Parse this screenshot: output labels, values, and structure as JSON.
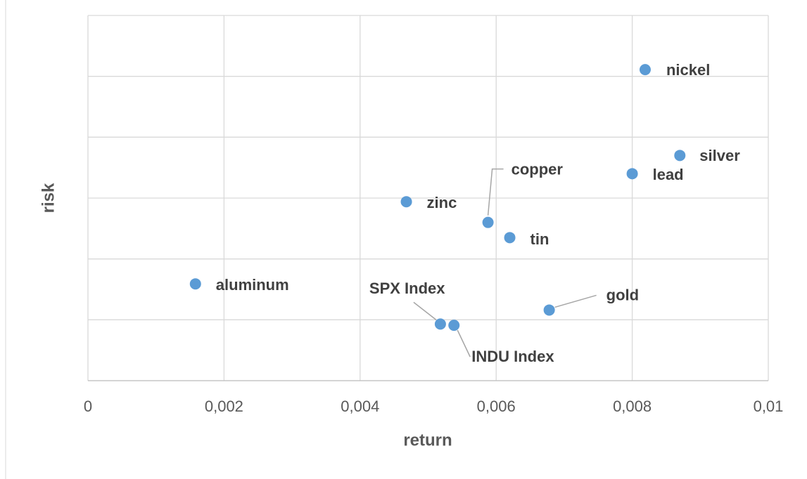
{
  "chart_data": {
    "type": "scatter",
    "x_label": "return",
    "y_label": "risk",
    "x": [
      0.00819,
      0.0087,
      0.008,
      0.00468,
      0.00588,
      0.0062,
      0.00158,
      0.00678,
      0.00518,
      0.00538
    ],
    "values": [
      5.11,
      3.7,
      3.4,
      2.94,
      2.6,
      2.35,
      1.59,
      1.16,
      0.93,
      0.91
    ],
    "labels": [
      "nickel",
      "silver",
      "lead",
      "zinc",
      "copper",
      "tin",
      "aluminum",
      "gold",
      "SPX Index",
      "INDU Index"
    ],
    "color": "#5b9bd5",
    "xlim": [
      0,
      0.01
    ],
    "xticks": [
      0,
      {
        "value": 0.002,
        "label": "0,002"
      },
      {
        "value": 0.004,
        "label": "0,004"
      },
      {
        "value": 0.006,
        "label": "0,006"
      },
      {
        "value": 0.008,
        "label": "0,008"
      },
      {
        "value": 0.01,
        "label": "0,01"
      }
    ],
    "ylim": [
      0,
      6
    ],
    "yticks": [
      0,
      1,
      2,
      3,
      4,
      5,
      6
    ],
    "show_ytick_labels": false,
    "grid": true
  }
}
